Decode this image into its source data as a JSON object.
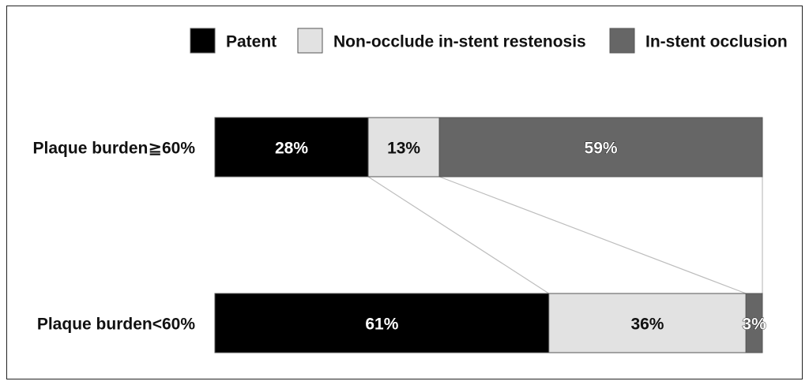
{
  "chart_data": {
    "type": "bar",
    "orientation": "horizontal",
    "stacked": true,
    "normalized_percent": true,
    "categories": [
      "Plaque burden≧60%",
      "Plaque burden<60%"
    ],
    "series": [
      {
        "name": "Patent",
        "values": [
          28,
          61
        ],
        "labels": [
          "28%",
          "61%"
        ],
        "color": "#000000"
      },
      {
        "name": "Non-occlude in-stent restenosis",
        "values": [
          13,
          36
        ],
        "labels": [
          "13%",
          "36%"
        ],
        "color": "#e2e2e2"
      },
      {
        "name": "In-stent occlusion",
        "values": [
          59,
          3
        ],
        "labels": [
          "59%",
          "3%"
        ],
        "color": "#666666"
      }
    ],
    "legend_position": "top-right",
    "grid": false,
    "connector_lines": true
  }
}
